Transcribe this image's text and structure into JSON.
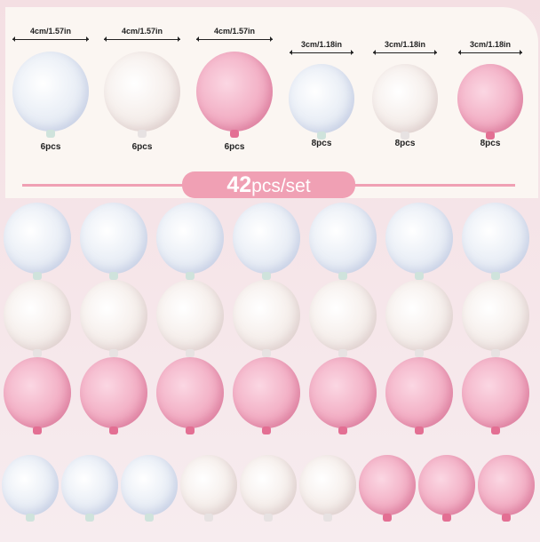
{
  "sizes": [
    {
      "label": "4cm/1.57in",
      "pcs": "6pcs",
      "color": "blue"
    },
    {
      "label": "4cm/1.57in",
      "pcs": "6pcs",
      "color": "cream"
    },
    {
      "label": "4cm/1.57in",
      "pcs": "6pcs",
      "color": "pink"
    },
    {
      "label": "3cm/1.18in",
      "pcs": "8pcs",
      "color": "blue"
    },
    {
      "label": "3cm/1.18in",
      "pcs": "8pcs",
      "color": "cream"
    },
    {
      "label": "3cm/1.18in",
      "pcs": "8pcs",
      "color": "pink"
    }
  ],
  "banner": {
    "count": "42",
    "unit": "pcs/set"
  },
  "grid_rows": [
    [
      "blue",
      "blue",
      "blue",
      "blue",
      "blue",
      "blue",
      "blue"
    ],
    [
      "cream",
      "cream",
      "cream",
      "cream",
      "cream",
      "cream",
      "cream"
    ],
    [
      "pink",
      "pink",
      "pink",
      "pink",
      "pink",
      "pink",
      "pink"
    ],
    [
      "blue",
      "blue",
      "blue",
      "cream",
      "cream",
      "cream",
      "pink",
      "pink",
      "pink"
    ]
  ]
}
